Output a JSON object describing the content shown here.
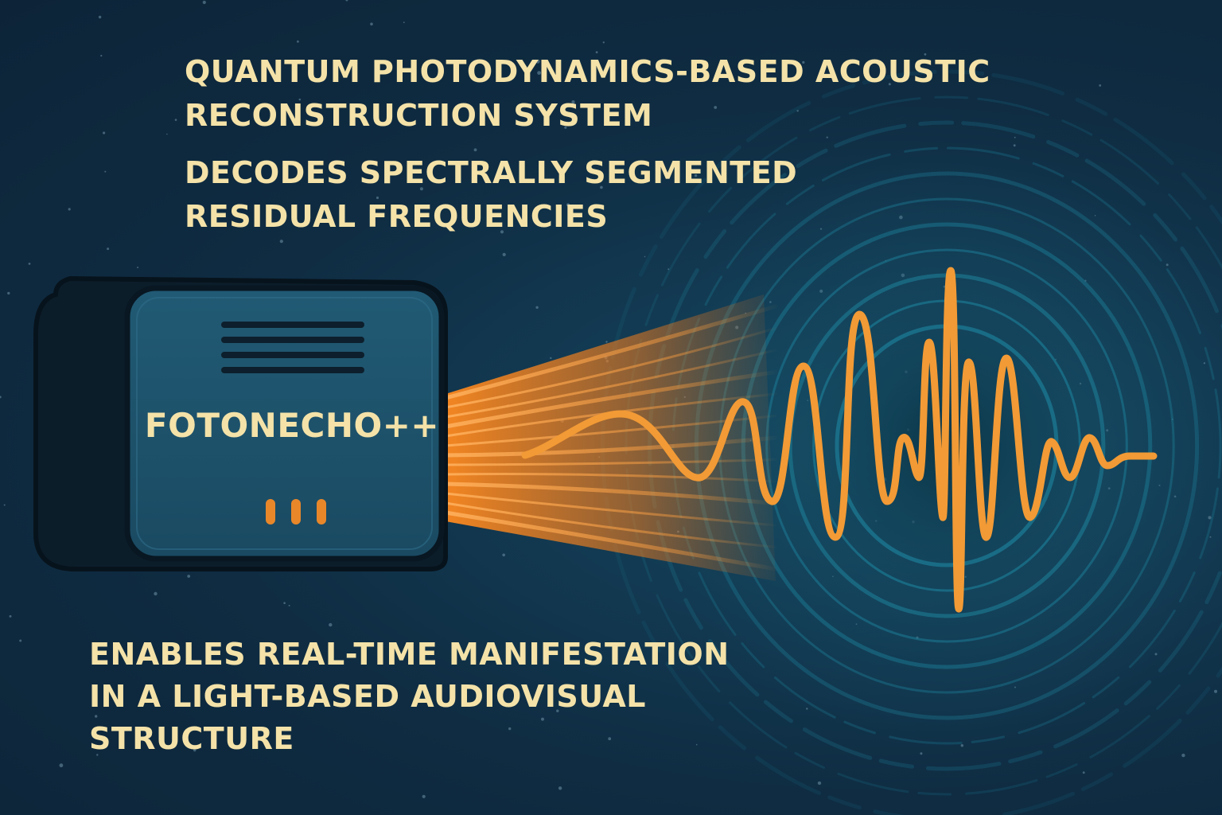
{
  "colors": {
    "background": "#0f2a3f",
    "caption_text": "#f4e2a8",
    "device_body": "#1b4d66",
    "device_shadow": "#0c1d2a",
    "waveform": "#f29a35",
    "beam": "#f0821e",
    "ripple": "#1c7a93"
  },
  "captions": {
    "title": {
      "line1": "QUANTUM PHOTODYNAMICS-BASED ACOUSTIC",
      "line2": "RECONSTRUCTION SYSTEM"
    },
    "decode": {
      "line1": "DECODES SPECTRALLY SEGMENTED",
      "line2": "RESIDUAL FREQUENCIES"
    },
    "enable": {
      "line1": "ENABLES REAL-TIME MANIFESTATION",
      "line2": "IN A LIGHT-BASED AUDIOVISUAL",
      "line3": "STRUCTURE"
    }
  },
  "device": {
    "label": "FOTONECHO++",
    "icon": "speaker-device-icon"
  },
  "icons": {
    "beam": "light-beam-icon",
    "waveform": "sound-waveform-icon",
    "ripples": "concentric-ripple-icon"
  }
}
